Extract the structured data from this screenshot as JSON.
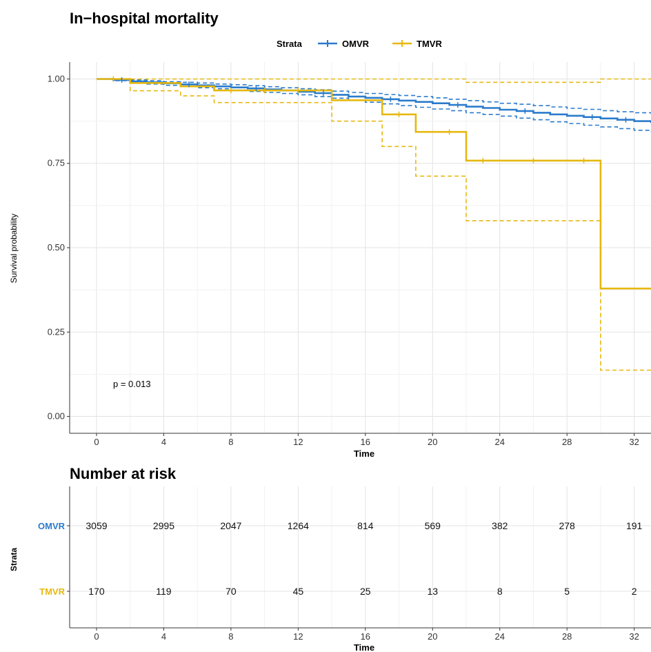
{
  "colors": {
    "omvr": "#2b7bcb",
    "tmvr": "#e6b80f",
    "grid_major": "#e3e3e3",
    "grid_minor": "#f1f1f1"
  },
  "chart_data": [
    {
      "type": "line",
      "subtype": "kaplan-meier",
      "title": "In−hospital mortality",
      "xlabel": "Time",
      "ylabel": "Survival probability",
      "legend_title": "Strata",
      "legend_position": "top",
      "annotation": "p = 0.013",
      "xlim": [
        -1.6,
        33
      ],
      "ylim": [
        -0.05,
        1.05
      ],
      "x_ticks": [
        "0",
        "4",
        "8",
        "12",
        "16",
        "20",
        "24",
        "28",
        "32"
      ],
      "y_ticks": [
        "0.00",
        "0.25",
        "0.50",
        "0.75",
        "1.00"
      ],
      "grid": true,
      "series": [
        {
          "name": "OMVR",
          "color": "#2b7bcb",
          "x": [
            0,
            1,
            2,
            3,
            4,
            5,
            6,
            7,
            8,
            9,
            10,
            11,
            12,
            13,
            14,
            15,
            16,
            17,
            18,
            19,
            20,
            21,
            22,
            23,
            24,
            25,
            26,
            27,
            28,
            29,
            30,
            31,
            32,
            33
          ],
          "y": [
            1.0,
            0.997,
            0.993,
            0.99,
            0.987,
            0.984,
            0.981,
            0.978,
            0.975,
            0.972,
            0.969,
            0.966,
            0.962,
            0.958,
            0.953,
            0.948,
            0.944,
            0.94,
            0.936,
            0.932,
            0.928,
            0.923,
            0.918,
            0.914,
            0.909,
            0.905,
            0.9,
            0.895,
            0.891,
            0.887,
            0.883,
            0.879,
            0.875,
            0.87
          ],
          "ci_upper": [
            1.0,
            0.999,
            0.997,
            0.995,
            0.992,
            0.99,
            0.988,
            0.985,
            0.983,
            0.98,
            0.977,
            0.974,
            0.971,
            0.968,
            0.964,
            0.96,
            0.957,
            0.954,
            0.951,
            0.948,
            0.944,
            0.94,
            0.936,
            0.932,
            0.928,
            0.925,
            0.921,
            0.917,
            0.913,
            0.91,
            0.906,
            0.903,
            0.9,
            0.897
          ],
          "ci_lower": [
            1.0,
            0.995,
            0.989,
            0.985,
            0.981,
            0.978,
            0.974,
            0.971,
            0.967,
            0.963,
            0.96,
            0.957,
            0.953,
            0.948,
            0.943,
            0.937,
            0.931,
            0.926,
            0.921,
            0.916,
            0.911,
            0.906,
            0.9,
            0.895,
            0.89,
            0.884,
            0.879,
            0.873,
            0.868,
            0.863,
            0.858,
            0.853,
            0.848,
            0.843
          ],
          "censor_x": [
            1.5,
            5.5,
            9.5,
            13.5,
            17.5,
            21.5,
            25.5,
            29.5,
            31.5
          ]
        },
        {
          "name": "TMVR",
          "color": "#e6b80f",
          "x": [
            0,
            2,
            5,
            7,
            14,
            17,
            19,
            22,
            30,
            33
          ],
          "y": [
            1.0,
            0.988,
            0.978,
            0.966,
            0.937,
            0.895,
            0.843,
            0.758,
            0.379,
            0.379
          ],
          "ci_upper": [
            1.0,
            1.0,
            1.0,
            1.0,
            1.0,
            1.0,
            1.0,
            0.99,
            1.0,
            1.0
          ],
          "ci_lower": [
            1.0,
            0.965,
            0.95,
            0.93,
            0.875,
            0.8,
            0.712,
            0.58,
            0.137,
            0.137
          ],
          "censor_x": [
            1,
            8,
            10,
            12,
            18,
            21,
            23,
            26,
            29
          ]
        }
      ]
    },
    {
      "type": "table",
      "title": "Number at risk",
      "ylabel": "Strata",
      "xlabel": "Time",
      "x_ticks": [
        "0",
        "4",
        "8",
        "12",
        "16",
        "20",
        "24",
        "28",
        "32"
      ],
      "rows": [
        {
          "name": "OMVR",
          "color": "#2b7bcb",
          "values": [
            "3059",
            "2995",
            "2047",
            "1264",
            "814",
            "569",
            "382",
            "278",
            "191"
          ]
        },
        {
          "name": "TMVR",
          "color": "#e6b80f",
          "values": [
            "170",
            "119",
            "70",
            "45",
            "25",
            "13",
            "8",
            "5",
            "2"
          ]
        }
      ]
    }
  ]
}
